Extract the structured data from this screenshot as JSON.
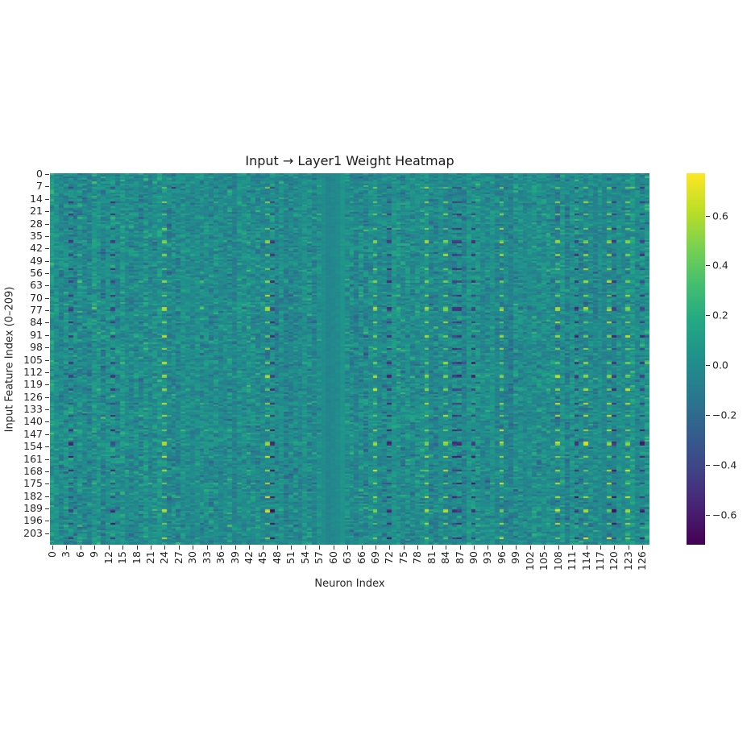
{
  "chart_data": {
    "type": "heatmap",
    "title": "Input → Layer1 Weight Heatmap",
    "xlabel": "Neuron Index",
    "ylabel": "Input Feature Index (0–209)",
    "rows": 210,
    "cols": 128,
    "colormap": "viridis",
    "vmin": -0.72,
    "vmax": 0.77,
    "x_ticks": [
      "0",
      "3",
      "6",
      "9",
      "12",
      "15",
      "18",
      "21",
      "24",
      "27",
      "30",
      "33",
      "36",
      "39",
      "42",
      "45",
      "48",
      "51",
      "54",
      "57",
      "60",
      "63",
      "66",
      "69",
      "72",
      "75",
      "78",
      "81",
      "84",
      "87",
      "90",
      "93",
      "96",
      "99",
      "102",
      "105",
      "108",
      "111",
      "114",
      "117",
      "120",
      "123",
      "126"
    ],
    "y_ticks": [
      "0",
      "7",
      "14",
      "21",
      "28",
      "35",
      "42",
      "49",
      "56",
      "63",
      "70",
      "77",
      "84",
      "91",
      "98",
      "105",
      "112",
      "119",
      "126",
      "133",
      "140",
      "147",
      "154",
      "161",
      "168",
      "175",
      "182",
      "189",
      "196",
      "203"
    ],
    "colorbar_ticks": [
      {
        "value": 0.6,
        "label": "0.6"
      },
      {
        "value": 0.4,
        "label": "0.4"
      },
      {
        "value": 0.2,
        "label": "0.2"
      },
      {
        "value": 0.0,
        "label": "0.0"
      },
      {
        "value": -0.2,
        "label": "−0.2"
      },
      {
        "value": -0.4,
        "label": "−0.4"
      },
      {
        "value": -0.6,
        "label": "−0.6"
      }
    ],
    "notes": {
      "typical_value_range": [
        -0.2,
        0.25
      ],
      "strong_positive_columns": [
        24,
        46,
        69,
        80,
        84,
        96,
        108,
        114,
        119,
        123
      ],
      "strong_negative_columns": [
        4,
        13,
        47,
        72,
        86,
        87,
        90,
        112,
        120,
        126
      ],
      "near_zero_columns": [
        58,
        59,
        60,
        61,
        62
      ],
      "periodic_row_stride": 7.6
    },
    "grid": false,
    "legend_position": "colorbar-right"
  }
}
